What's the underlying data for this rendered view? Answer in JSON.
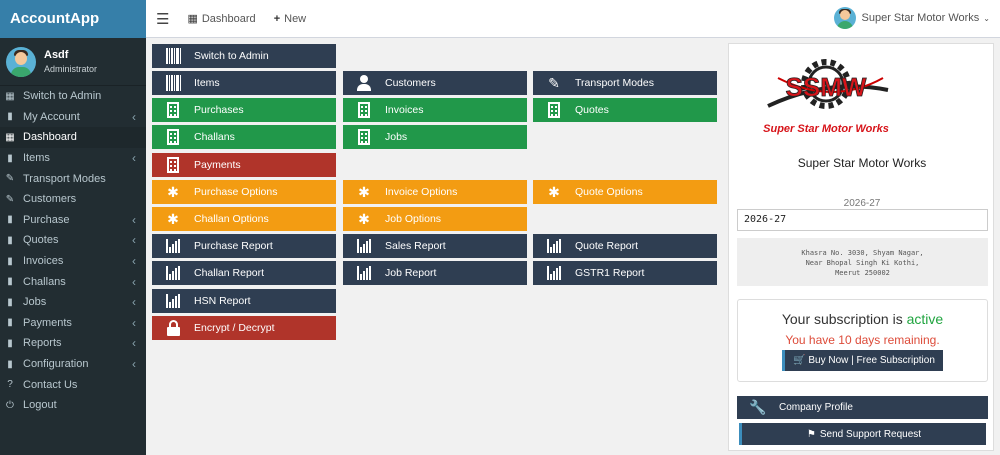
{
  "app": {
    "brand": "AccountApp"
  },
  "user": {
    "name": "Asdf",
    "role": "Administrator"
  },
  "sidebar": {
    "items": [
      {
        "label": "Switch to Admin",
        "icon": "grid-icon",
        "chevron": false
      },
      {
        "label": "My Account",
        "icon": "bookmark-icon",
        "chevron": true
      },
      {
        "label": "Dashboard",
        "icon": "grid-icon",
        "chevron": false,
        "active": true
      },
      {
        "label": "Items",
        "icon": "bookmark-icon",
        "chevron": true
      },
      {
        "label": "Transport Modes",
        "icon": "edit-icon",
        "chevron": false
      },
      {
        "label": "Customers",
        "icon": "edit-icon",
        "chevron": false
      },
      {
        "label": "Purchase",
        "icon": "bookmark-icon",
        "chevron": true
      },
      {
        "label": "Quotes",
        "icon": "bookmark-icon",
        "chevron": true
      },
      {
        "label": "Invoices",
        "icon": "bookmark-icon",
        "chevron": true
      },
      {
        "label": "Challans",
        "icon": "bookmark-icon",
        "chevron": true
      },
      {
        "label": "Jobs",
        "icon": "bookmark-icon",
        "chevron": true
      },
      {
        "label": "Payments",
        "icon": "bookmark-icon",
        "chevron": true
      },
      {
        "label": "Reports",
        "icon": "bookmark-icon",
        "chevron": true
      },
      {
        "label": "Configuration",
        "icon": "bookmark-icon",
        "chevron": true
      },
      {
        "label": "Contact Us",
        "icon": "question-icon",
        "chevron": false
      },
      {
        "label": "Logout",
        "icon": "power-icon",
        "chevron": false
      }
    ]
  },
  "topbar": {
    "dashboard_label": "Dashboard",
    "new_label": "New",
    "company_label": "Super Star Motor Works"
  },
  "tiles": {
    "switch_admin": "Switch to Admin",
    "items": "Items",
    "customers": "Customers",
    "transport_modes": "Transport Modes",
    "purchases": "Purchases",
    "invoices": "Invoices",
    "quotes": "Quotes",
    "challans": "Challans",
    "jobs": "Jobs",
    "payments": "Payments",
    "purchase_options": "Purchase Options",
    "invoice_options": "Invoice Options",
    "quote_options": "Quote Options",
    "challan_options": "Challan Options",
    "job_options": "Job Options",
    "purchase_report": "Purchase Report",
    "sales_report": "Sales Report",
    "quote_report": "Quote Report",
    "challan_report": "Challan Report",
    "job_report": "Job Report",
    "gstr1_report": "GSTR1 Report",
    "hsn_report": "HSN Report",
    "encrypt_decrypt": "Encrypt / Decrypt"
  },
  "company": {
    "logo_text": "SSMW",
    "logo_subtitle": "Super Star Motor Works",
    "name": "Super Star Motor Works",
    "fy_label": "2026-27",
    "fy_selected": "2026-27",
    "address_lines": [
      "Khasra No. 3030, Shyam Nagar,",
      "Near Bhopal Singh Ki Kothi,",
      "Meerut 250002"
    ]
  },
  "subscription": {
    "prefix": "Your subscription is",
    "status": "active",
    "remaining": "You have 10 days remaining.",
    "buy_label": "Buy Now | Free Subscription"
  },
  "profile": {
    "label": "Company Profile",
    "support_label": "Send Support Request"
  },
  "colors": {
    "dark": "#2f3e52",
    "green": "#21984a",
    "red": "#b0342a",
    "orange": "#f39c12",
    "sidebar": "#222d32",
    "brand": "#367fa9"
  }
}
